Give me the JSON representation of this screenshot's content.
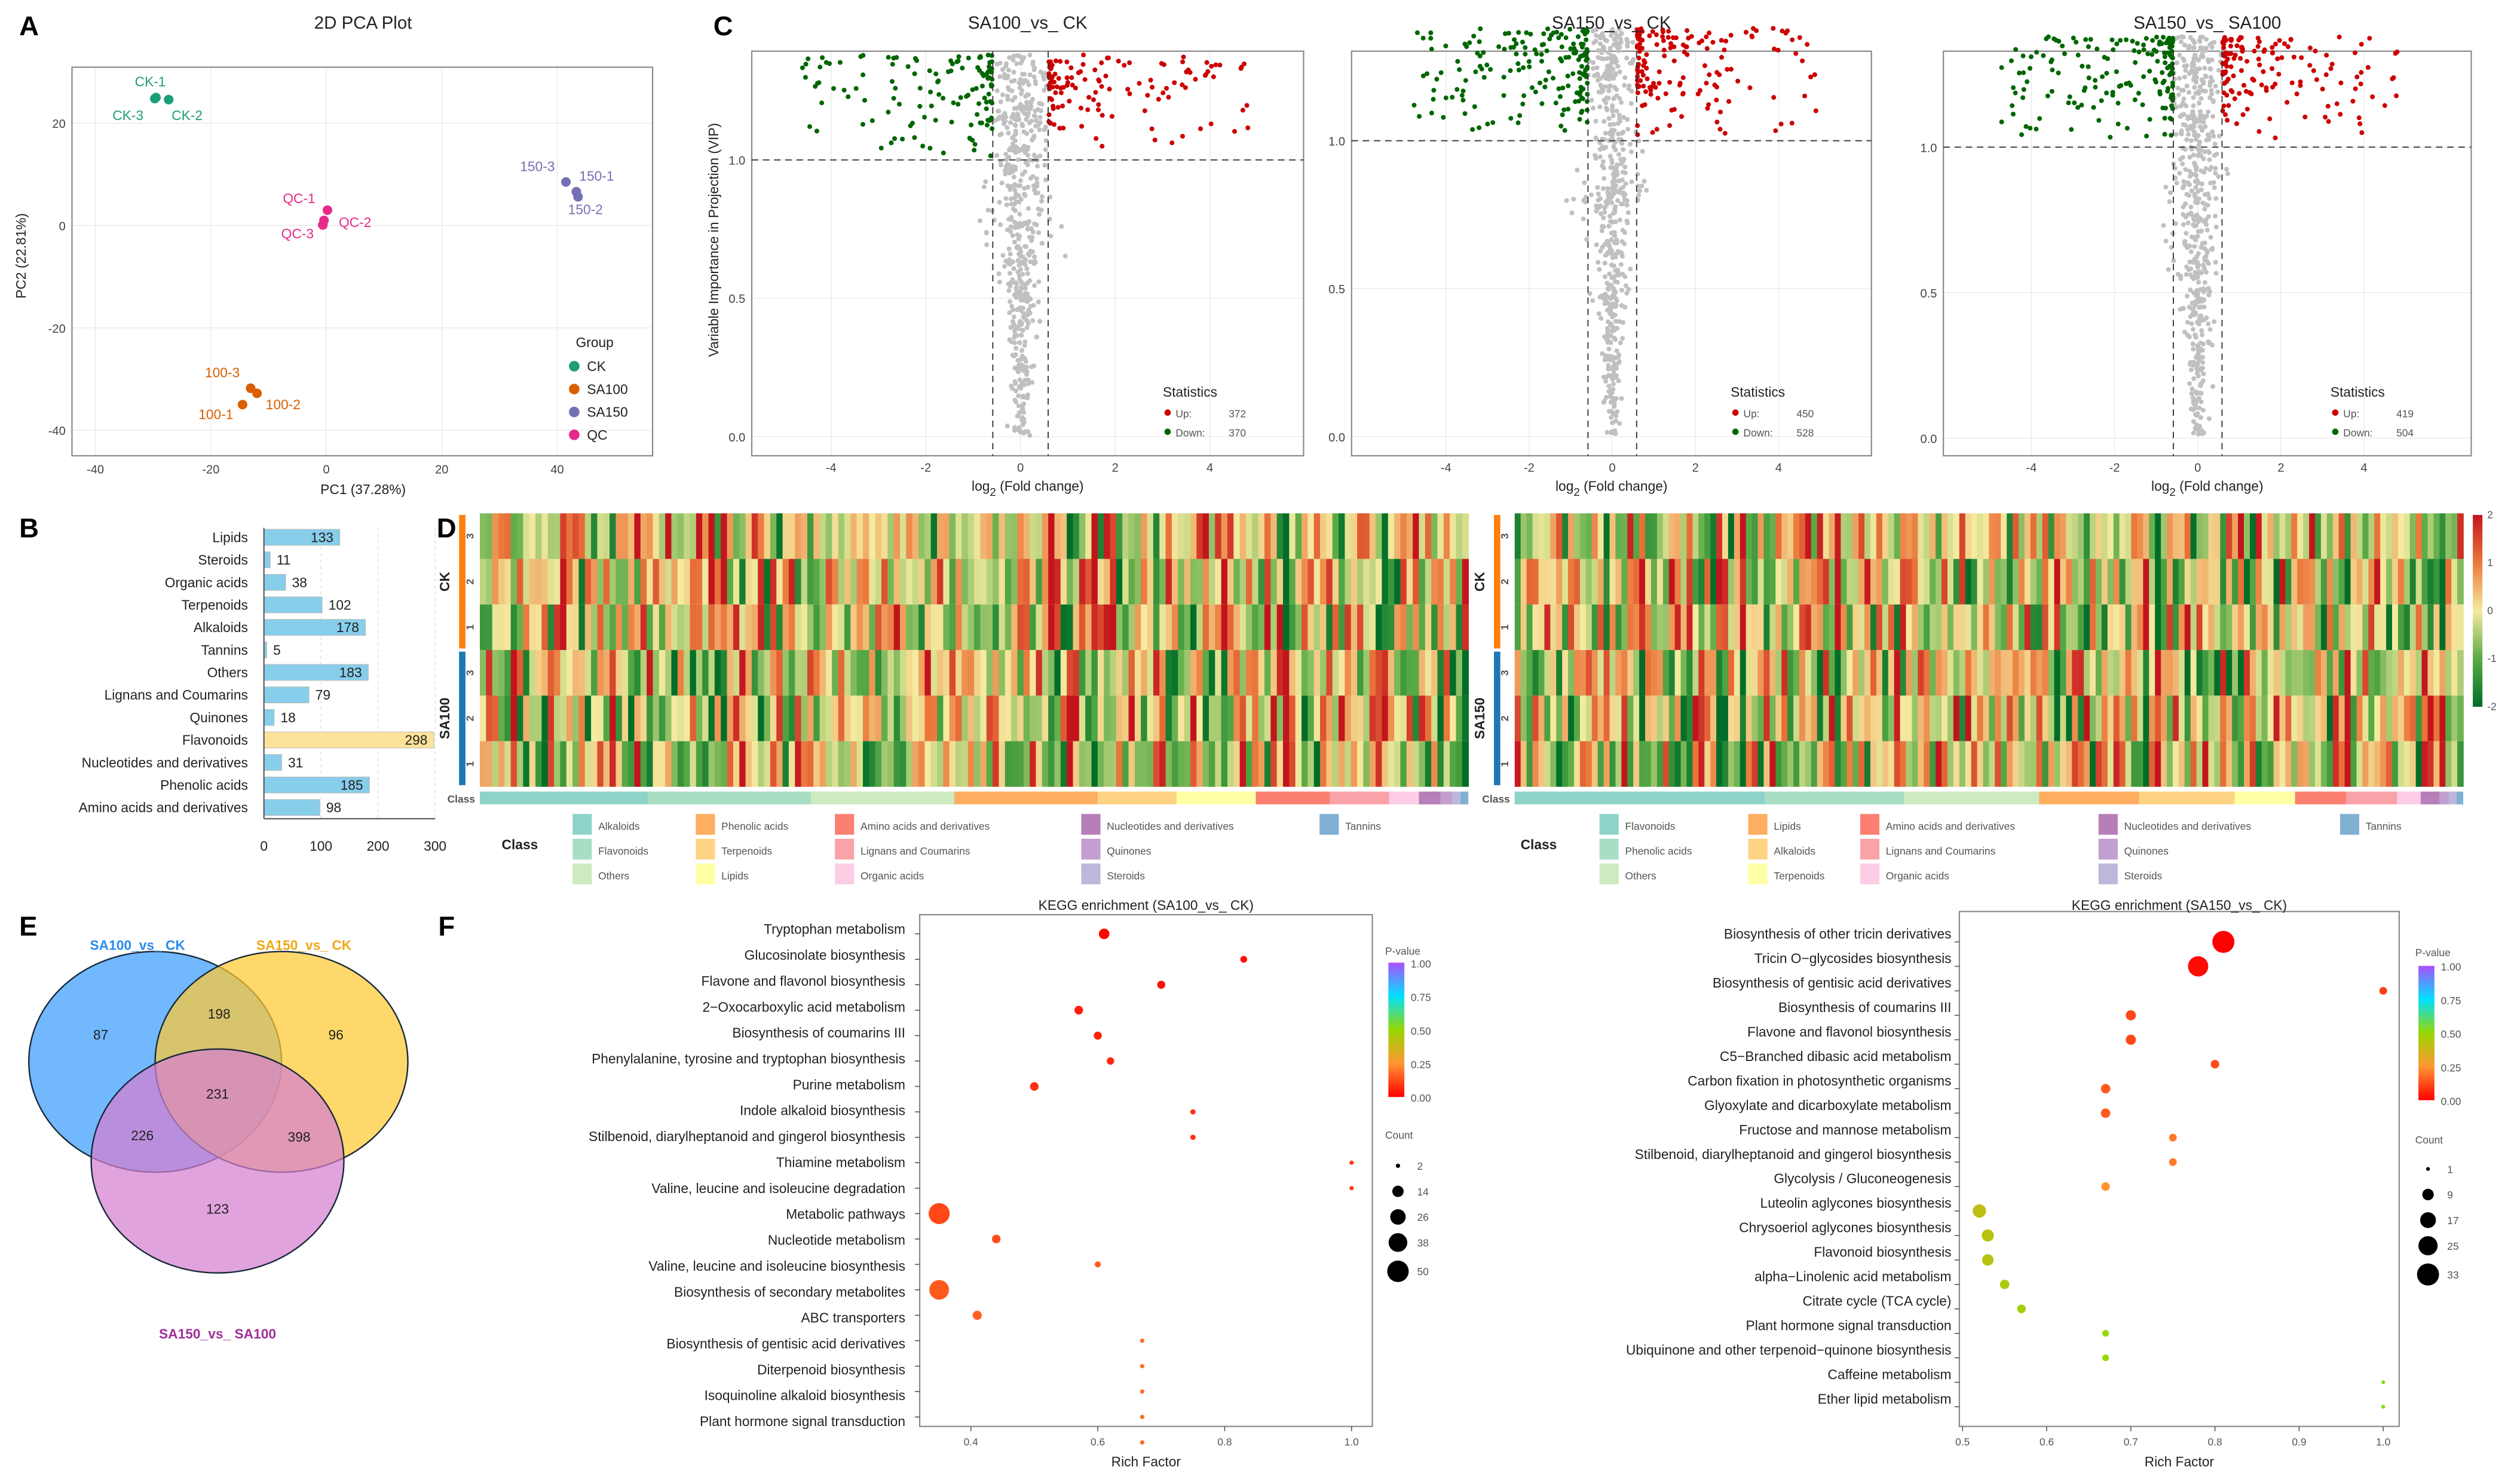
{
  "panel_labels": [
    "A",
    "B",
    "C",
    "D",
    "E",
    "F"
  ],
  "chart_data": [
    {
      "type": "scatter",
      "id": "pca",
      "title": "2D PCA Plot",
      "xlabel": "PC1 (37.28%)",
      "ylabel": "PC2 (22.81%)",
      "xticks": [
        -40,
        -20,
        0,
        20,
        40
      ],
      "yticks": [
        20,
        0,
        -20,
        -40
      ],
      "legend_title": "Group",
      "groups": [
        {
          "name": "CK",
          "color": "#1b9e77"
        },
        {
          "name": "SA100",
          "color": "#d95f02"
        },
        {
          "name": "SA150",
          "color": "#7570b3"
        },
        {
          "name": "QC",
          "color": "#e7298a"
        }
      ],
      "points": [
        {
          "label": "CK-1",
          "group": "CK",
          "x": -29.5,
          "y": 25.0
        },
        {
          "label": "CK-3",
          "group": "CK",
          "x": -29.7,
          "y": 24.8
        },
        {
          "label": "CK-2",
          "group": "CK",
          "x": -27.3,
          "y": 24.6
        },
        {
          "label": "QC-1",
          "group": "QC",
          "x": 0.2,
          "y": 3.0
        },
        {
          "label": "QC-2",
          "group": "QC",
          "x": -0.4,
          "y": 1.0
        },
        {
          "label": "QC-3",
          "group": "QC",
          "x": -0.6,
          "y": 0.1
        },
        {
          "label": "150-3",
          "group": "SA150",
          "x": 41.5,
          "y": 8.5
        },
        {
          "label": "150-1",
          "group": "SA150",
          "x": 43.3,
          "y": 6.6
        },
        {
          "label": "150-2",
          "group": "SA150",
          "x": 43.6,
          "y": 5.6
        },
        {
          "label": "100-3",
          "group": "SA100",
          "x": -13.1,
          "y": -31.8
        },
        {
          "label": "100-2",
          "group": "SA100",
          "x": -12.0,
          "y": -32.8
        },
        {
          "label": "100-1",
          "group": "SA100",
          "x": -14.5,
          "y": -35.0
        }
      ]
    },
    {
      "type": "bar",
      "id": "class-counts",
      "orientation": "horizontal",
      "categories": [
        "Lipids",
        "Steroids",
        "Organic acids",
        "Terpenoids",
        "Alkaloids",
        "Tannins",
        "Others",
        "Lignans and Coumarins",
        "Quinones",
        "Flavonoids",
        "Nucleotides and derivatives",
        "Phenolic acids",
        "Amino acids and derivatives"
      ],
      "values": [
        133,
        11,
        38,
        102,
        178,
        5,
        183,
        79,
        18,
        298,
        31,
        185,
        98
      ],
      "highlight": "Flavonoids",
      "colors": {
        "default": "#87ceeb",
        "highlight": "#fde39a"
      },
      "xticks": [
        0,
        100,
        200,
        300
      ],
      "xlim": [
        0,
        300
      ]
    },
    {
      "type": "scatter",
      "id": "volcano-1",
      "title": "SA100_vs_ CK",
      "xlabel": {
        "base": "log",
        "sub": "2",
        "rest": " (Fold change)"
      },
      "ylabel": "Variable Importance in Projection (VIP)",
      "xticks": [
        -4,
        -2,
        0,
        2,
        4
      ],
      "yticks": [
        0.0,
        0.5,
        1.0
      ],
      "ytick_labels": [
        "0.0",
        "0.5",
        "1.0"
      ],
      "vip_threshold": 1.0,
      "log2fc_threshold": 0.585,
      "stats_title": "Statistics",
      "up_label": "Up:",
      "down_label": "Down:",
      "up": 372,
      "down": 370,
      "colors": {
        "up": "#cc0000",
        "down": "#006600",
        "ns": "#c0c0c0"
      }
    },
    {
      "type": "scatter",
      "id": "volcano-2",
      "title": "SA150_vs_ CK",
      "xlabel": {
        "base": "log",
        "sub": "2",
        "rest": " (Fold change)"
      },
      "xticks": [
        -4,
        -2,
        0,
        2,
        4
      ],
      "yticks": [
        0.0,
        0.5,
        1.0
      ],
      "ytick_labels": [
        "0.0",
        "0.5",
        "1.0"
      ],
      "vip_threshold": 1.0,
      "log2fc_threshold": 0.585,
      "stats_title": "Statistics",
      "up_label": "Up:",
      "down_label": "Down:",
      "up": 450,
      "down": 528,
      "colors": {
        "up": "#cc0000",
        "down": "#006600",
        "ns": "#c0c0c0"
      }
    },
    {
      "type": "scatter",
      "id": "volcano-3",
      "title": "SA150_vs_ SA100",
      "xlabel": {
        "base": "log",
        "sub": "2",
        "rest": " (Fold change)"
      },
      "xticks": [
        -4,
        -2,
        0,
        2,
        4
      ],
      "yticks": [
        0.0,
        0.5,
        1.0
      ],
      "ytick_labels": [
        "0.0",
        "0.5",
        "1.0"
      ],
      "vip_threshold": 1.0,
      "log2fc_threshold": 0.585,
      "stats_title": "Statistics",
      "up_label": "Up:",
      "down_label": "Down:",
      "up": 419,
      "down": 504,
      "colors": {
        "up": "#cc0000",
        "down": "#006600",
        "ns": "#c0c0c0"
      }
    },
    {
      "type": "heatmap",
      "id": "heatmap-sa100-ck",
      "groups": [
        {
          "name": "CK",
          "color": "#ff7f0e",
          "replicates": [
            "3",
            "2",
            "1"
          ]
        },
        {
          "name": "SA100",
          "color": "#1f77b4",
          "replicates": [
            "3",
            "2",
            "1"
          ]
        }
      ],
      "class_label": "Class",
      "legend_title": "Class",
      "classes": [
        {
          "name": "Alkaloids",
          "color": "#8dd3c7",
          "share": 0.17
        },
        {
          "name": "Flavonoids",
          "color": "#a8dfc4",
          "share": 0.165
        },
        {
          "name": "Others",
          "color": "#cdeac0",
          "share": 0.145
        },
        {
          "name": "Phenolic acids",
          "color": "#fdae61",
          "share": 0.145
        },
        {
          "name": "Terpenoids",
          "color": "#fed383",
          "share": 0.08
        },
        {
          "name": "Lipids",
          "color": "#ffffa6",
          "share": 0.08
        },
        {
          "name": "Amino acids and derivatives",
          "color": "#fb8072",
          "share": 0.075
        },
        {
          "name": "Lignans and Coumarins",
          "color": "#f9a3a8",
          "share": 0.06
        },
        {
          "name": "Organic acids",
          "color": "#fccde5",
          "share": 0.03
        },
        {
          "name": "Nucleotides and derivatives",
          "color": "#b77fb8",
          "share": 0.022
        },
        {
          "name": "Quinones",
          "color": "#c29fd0",
          "share": 0.012
        },
        {
          "name": "Steroids",
          "color": "#bcb8da",
          "share": 0.008
        },
        {
          "name": "Tannins",
          "color": "#80b1d3",
          "share": 0.008
        }
      ]
    },
    {
      "type": "heatmap",
      "id": "heatmap-sa150-ck",
      "groups": [
        {
          "name": "CK",
          "color": "#ff7f0e",
          "replicates": [
            "3",
            "2",
            "1"
          ]
        },
        {
          "name": "SA150",
          "color": "#1f77b4",
          "replicates": [
            "3",
            "2",
            "1"
          ]
        }
      ],
      "class_label": "Class",
      "legend_title": "Class",
      "scale_ticks": [
        "2",
        "1",
        "0",
        "-1",
        "-2"
      ],
      "classes": [
        {
          "name": "Flavonoids",
          "color": "#8dd3c7",
          "share": 0.265
        },
        {
          "name": "Phenolic acids",
          "color": "#a8dfc4",
          "share": 0.147
        },
        {
          "name": "Others",
          "color": "#cdeac0",
          "share": 0.143
        },
        {
          "name": "Lipids",
          "color": "#fdae61",
          "share": 0.106
        },
        {
          "name": "Alkaloids",
          "color": "#fed383",
          "share": 0.101
        },
        {
          "name": "Terpenoids",
          "color": "#ffffa6",
          "share": 0.064
        },
        {
          "name": "Amino acids and derivatives",
          "color": "#fb8072",
          "share": 0.054
        },
        {
          "name": "Lignans and Coumarins",
          "color": "#f9a3a8",
          "share": 0.054
        },
        {
          "name": "Organic acids",
          "color": "#fccde5",
          "share": 0.025
        },
        {
          "name": "Nucleotides and derivatives",
          "color": "#b77fb8",
          "share": 0.02
        },
        {
          "name": "Quinones",
          "color": "#c29fd0",
          "share": 0.01
        },
        {
          "name": "Steroids",
          "color": "#bcb8da",
          "share": 0.008
        },
        {
          "name": "Tannins",
          "color": "#80b1d3",
          "share": 0.007
        }
      ]
    },
    {
      "type": "venn",
      "id": "venn",
      "sets": [
        {
          "name": "SA100_vs_ CK",
          "color": "#3a9cff"
        },
        {
          "name": "SA150_vs_ CK",
          "color": "#ffc933"
        },
        {
          "name": "SA150_vs_ SA100",
          "color": "#d57fd0"
        }
      ],
      "label_colors": [
        "#2a8cf0",
        "#f0a818",
        "#a0309a"
      ],
      "regions": {
        "only_A": 87,
        "only_B": 96,
        "only_C": 123,
        "A_B": 198,
        "A_C": 226,
        "B_C": 398,
        "A_B_C": 231
      }
    },
    {
      "type": "scatter",
      "id": "kegg-sa100-ck",
      "title": "KEGG enrichment (SA100_vs_ CK)",
      "xlabel": "Rich Factor",
      "xticks": [
        "0.4",
        "0.6",
        "0.8",
        "1.0"
      ],
      "pvalue_title": "P-value",
      "pvalue_ticks": [
        "1.00",
        "0.75",
        "0.50",
        "0.25",
        "0.00"
      ],
      "count_title": "Count",
      "count_ticks": [
        2,
        14,
        26,
        38,
        50
      ],
      "pathways": [
        {
          "name": "Tryptophan metabolism",
          "rich": 0.61,
          "count": 12,
          "p": 0.01
        },
        {
          "name": "Glucosinolate biosynthesis",
          "rich": 0.83,
          "count": 5,
          "p": 0.02
        },
        {
          "name": "Flavone and flavonol biosynthesis",
          "rich": 0.7,
          "count": 7,
          "p": 0.03
        },
        {
          "name": "2−Oxocarboxylic acid metabolism",
          "rich": 0.57,
          "count": 8,
          "p": 0.05
        },
        {
          "name": "Biosynthesis of coumarins III",
          "rich": 0.6,
          "count": 7,
          "p": 0.06
        },
        {
          "name": "Phenylalanine, tyrosine and tryptophan biosynthesis",
          "rich": 0.62,
          "count": 6,
          "p": 0.07
        },
        {
          "name": "Purine metabolism",
          "rich": 0.5,
          "count": 8,
          "p": 0.08
        },
        {
          "name": "Indole alkaloid biosynthesis",
          "rich": 0.75,
          "count": 3,
          "p": 0.08
        },
        {
          "name": "Stilbenoid, diarylheptanoid and gingerol biosynthesis",
          "rich": 0.75,
          "count": 3,
          "p": 0.08
        },
        {
          "name": "Thiamine metabolism",
          "rich": 1.0,
          "count": 2,
          "p": 0.1
        },
        {
          "name": "Valine, leucine and isoleucine degradation",
          "rich": 1.0,
          "count": 2,
          "p": 0.1
        },
        {
          "name": "Metabolic pathways",
          "rich": 0.35,
          "count": 48,
          "p": 0.12
        },
        {
          "name": "Nucleotide metabolism",
          "rich": 0.44,
          "count": 8,
          "p": 0.13
        },
        {
          "name": "Valine, leucine and isoleucine biosynthesis",
          "rich": 0.6,
          "count": 4,
          "p": 0.15
        },
        {
          "name": "Biosynthesis of secondary metabolites",
          "rich": 0.35,
          "count": 42,
          "p": 0.15
        },
        {
          "name": "ABC transporters",
          "rich": 0.41,
          "count": 9,
          "p": 0.16
        },
        {
          "name": "Biosynthesis of gentisic acid derivatives",
          "rich": 0.67,
          "count": 2,
          "p": 0.18
        },
        {
          "name": "Diterpenoid biosynthesis",
          "rich": 0.67,
          "count": 2,
          "p": 0.18
        },
        {
          "name": "Isoquinoline alkaloid biosynthesis",
          "rich": 0.67,
          "count": 2,
          "p": 0.18
        },
        {
          "name": "Plant hormone signal transduction",
          "rich": 0.67,
          "count": 2,
          "p": 0.18
        }
      ],
      "xlim": [
        0.33,
        1.03
      ]
    },
    {
      "type": "scatter",
      "id": "kegg-sa150-ck",
      "title": "KEGG enrichment (SA150_vs_ CK)",
      "xlabel": "Rich Factor",
      "xticks": [
        "0.5",
        "0.6",
        "0.7",
        "0.8",
        "0.9",
        "1.0"
      ],
      "pvalue_title": "P-value",
      "pvalue_ticks": [
        "1.00",
        "0.75",
        "0.50",
        "0.25",
        "0.00"
      ],
      "count_title": "Count",
      "count_ticks": [
        1,
        9,
        17,
        25,
        33
      ],
      "pathways": [
        {
          "name": "Biosynthesis of other tricin derivatives",
          "rich": 0.81,
          "count": 33,
          "p": 0.0
        },
        {
          "name": "Tricin O−glycosides biosynthesis",
          "rich": 0.78,
          "count": 28,
          "p": 0.02
        },
        {
          "name": "Biosynthesis of gentisic acid derivatives",
          "rich": 1.0,
          "count": 4,
          "p": 0.1
        },
        {
          "name": "Biosynthesis of coumarins III",
          "rich": 0.7,
          "count": 7,
          "p": 0.12
        },
        {
          "name": "Flavone and flavonol biosynthesis",
          "rich": 0.7,
          "count": 7,
          "p": 0.12
        },
        {
          "name": "C5−Branched dibasic acid metabolism",
          "rich": 0.8,
          "count": 5,
          "p": 0.13
        },
        {
          "name": "Carbon fixation in photosynthetic organisms",
          "rich": 0.67,
          "count": 6,
          "p": 0.15
        },
        {
          "name": "Glyoxylate and dicarboxylate metabolism",
          "rich": 0.67,
          "count": 6,
          "p": 0.15
        },
        {
          "name": "Fructose and mannose metabolism",
          "rich": 0.75,
          "count": 4,
          "p": 0.2
        },
        {
          "name": "Stilbenoid, diarylheptanoid and gingerol biosynthesis",
          "rich": 0.75,
          "count": 4,
          "p": 0.2
        },
        {
          "name": "Glycolysis / Gluconeogenesis",
          "rich": 0.67,
          "count": 5,
          "p": 0.25
        },
        {
          "name": "Luteolin aglycones biosynthesis",
          "rich": 0.52,
          "count": 12,
          "p": 0.4
        },
        {
          "name": "Chrysoeriol aglycones biosynthesis",
          "rich": 0.53,
          "count": 10,
          "p": 0.42
        },
        {
          "name": "Flavonoid biosynthesis",
          "rich": 0.53,
          "count": 9,
          "p": 0.42
        },
        {
          "name": "alpha−Linolenic acid metabolism",
          "rich": 0.55,
          "count": 6,
          "p": 0.45
        },
        {
          "name": "Citrate cycle (TCA cycle)",
          "rich": 0.57,
          "count": 5,
          "p": 0.47
        },
        {
          "name": "Plant hormone signal transduction",
          "rich": 0.67,
          "count": 3,
          "p": 0.5
        },
        {
          "name": "Ubiquinone and other terpenoid−quinone biosynthesis",
          "rich": 0.67,
          "count": 3,
          "p": 0.5
        },
        {
          "name": "Caffeine metabolism",
          "rich": 1.0,
          "count": 1,
          "p": 0.52
        },
        {
          "name": "Ether lipid metabolism",
          "rich": 1.0,
          "count": 1,
          "p": 0.52
        }
      ],
      "xlim": [
        0.5,
        1.02
      ]
    }
  ]
}
